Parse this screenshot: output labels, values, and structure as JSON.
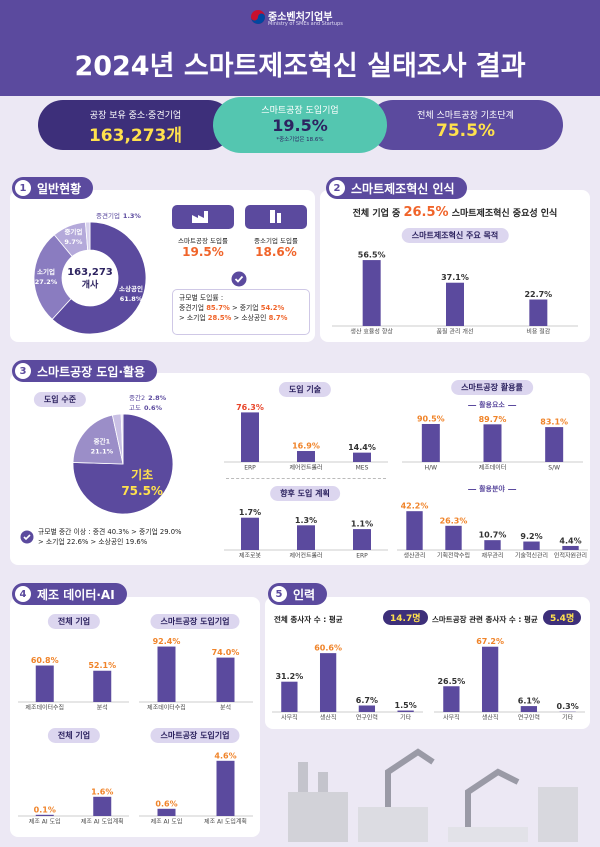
{
  "header": {
    "ministry": "중소벤처기업부",
    "ministry_en": "Ministry of SMEs and Startups",
    "title": "2024년 스마트제조혁신 실태조사 결과"
  },
  "summary": [
    {
      "label": "공장 보유 중소·중견기업",
      "value": "163,273개"
    },
    {
      "label": "스마트공장 도입기업",
      "value": "19.5%",
      "note": "*중소기업은 18.6%"
    },
    {
      "label": "전체 스마트공장 기초단계",
      "value": "75.5%"
    }
  ],
  "bar_color": "#5b4a9e",
  "sections": [
    {
      "number": "1",
      "title": "일반현황",
      "donut": {
        "center_value": "163,273",
        "center_unit": "개사",
        "categories": [
          "소상공인",
          "소기업",
          "중기업",
          "중견기업"
        ],
        "values": [
          61.8,
          27.2,
          9.7,
          1.3
        ],
        "value_labels": [
          "61.8%",
          "27.2%",
          "9.7%",
          "1.3%"
        ],
        "colors": [
          "#5b4a9e",
          "#8a7cc0",
          "#b4a9da",
          "#d8d2ee"
        ]
      },
      "cards": [
        {
          "label": "스마트공장 도입률",
          "value": "19.5%"
        },
        {
          "label": "중소기업 도입률",
          "value": "18.6%"
        }
      ],
      "by_size": {
        "title": "규모별 도입률 :",
        "lines": [
          [
            "중견기업 ",
            "85.7%",
            " > 중기업 ",
            "54.2%"
          ],
          [
            "> 소기업 ",
            "28.5%",
            " > 소상공인 ",
            "8.7%"
          ]
        ]
      }
    },
    {
      "number": "2",
      "title": "스마트제조혁신 인식",
      "headline": [
        "전체 기업 중 ",
        "26.5%",
        " 스마트제조혁신 중요성 인식"
      ],
      "chart": {
        "title": "스마트제조혁신 주요 목적",
        "categories": [
          "생산 효율성 향상",
          "품질 관리 개선",
          "비용 절감"
        ],
        "values": [
          56.5,
          37.1,
          22.7
        ],
        "value_labels": [
          "56.5%",
          "37.1%",
          "22.7%"
        ],
        "label_colors": [
          "#333333",
          "#333333",
          "#333333"
        ],
        "ylim": [
          0,
          60
        ]
      }
    },
    {
      "number": "3",
      "title": "스마트공장 도입·활용",
      "level": {
        "title": "도입 수준",
        "categories": [
          "기초",
          "중간1",
          "중간2",
          "고도"
        ],
        "values": [
          75.5,
          21.1,
          2.8,
          0.6
        ],
        "value_labels": [
          "75.5%",
          "21.1%",
          "2.8%",
          "0.6%"
        ],
        "colors": [
          "#5b4a9e",
          "#9b8ec8",
          "#c9c0e4",
          "#e5e0f2"
        ],
        "note": [
          "규모별 중간 이상 : 중견 40.3% > 중기업 29.0%",
          "> 소기업 22.6% > 소상공인 19.6%"
        ]
      },
      "tech": {
        "title": "도입 기술",
        "categories": [
          "ERP",
          "제어컨트롤러",
          "MES"
        ],
        "values": [
          76.3,
          16.9,
          14.4
        ],
        "value_labels": [
          "76.3%",
          "16.9%",
          "14.4%"
        ],
        "label_colors": [
          "#e8452a",
          "#f0842a",
          "#333333"
        ],
        "ylim": [
          0,
          80
        ]
      },
      "plan": {
        "title": "향후 도입 계획",
        "categories": [
          "제조로봇",
          "제어컨트롤러",
          "ERP"
        ],
        "values": [
          1.7,
          1.3,
          1.1
        ],
        "value_labels": [
          "1.7%",
          "1.3%",
          "1.1%"
        ],
        "label_colors": [
          "#333333",
          "#333333",
          "#333333"
        ],
        "ylim": [
          0,
          2
        ]
      },
      "usage": {
        "title": "스마트공장 활용률",
        "elements": {
          "title": "활용요소",
          "categories": [
            "H/W",
            "제조데이터",
            "S/W"
          ],
          "values": [
            90.5,
            89.7,
            83.1
          ],
          "value_labels": [
            "90.5%",
            "89.7%",
            "83.1%"
          ],
          "label_colors": [
            "#f0842a",
            "#f0842a",
            "#f0842a"
          ],
          "ylim": [
            0,
            100
          ]
        },
        "fields": {
          "title": "활용분야",
          "categories": [
            "생산관리",
            "기획전략수립",
            "재무관리",
            "기술혁신관리",
            "인적자원관리"
          ],
          "values": [
            42.2,
            26.3,
            10.7,
            9.2,
            4.4
          ],
          "value_labels": [
            "42.2%",
            "26.3%",
            "10.7%",
            "9.2%",
            "4.4%"
          ],
          "label_colors": [
            "#f0842a",
            "#f0842a",
            "#333333",
            "#333333",
            "#333333"
          ],
          "ylim": [
            0,
            50
          ]
        }
      }
    },
    {
      "number": "4",
      "title": "제조 데이터·AI",
      "charts": [
        {
          "title": "전체 기업",
          "categories": [
            "제조데이터수집",
            "분석"
          ],
          "values": [
            60.8,
            52.1
          ],
          "value_labels": [
            "60.8%",
            "52.1%"
          ],
          "label_colors": [
            "#f0842a",
            "#f0842a"
          ],
          "ylim": [
            0,
            100
          ]
        },
        {
          "title": "스마트공장 도입기업",
          "categories": [
            "제조데이터수집",
            "분석"
          ],
          "values": [
            92.4,
            74.0
          ],
          "value_labels": [
            "92.4%",
            "74.0%"
          ],
          "label_colors": [
            "#f0842a",
            "#f0842a"
          ],
          "ylim": [
            0,
            100
          ]
        },
        {
          "title": "전체 기업",
          "categories": [
            "제조 AI 도입",
            "제조 AI 도입계획"
          ],
          "values": [
            0.1,
            1.6
          ],
          "value_labels": [
            "0.1%",
            "1.6%"
          ],
          "label_colors": [
            "#f0842a",
            "#f0842a"
          ],
          "ylim": [
            0,
            5
          ]
        },
        {
          "title": "스마트공장 도입기업",
          "categories": [
            "제조 AI 도입",
            "제조 AI 도입계획"
          ],
          "values": [
            0.6,
            4.6
          ],
          "value_labels": [
            "0.6%",
            "4.6%"
          ],
          "label_colors": [
            "#f0842a",
            "#f0842a"
          ],
          "ylim": [
            0,
            5
          ]
        }
      ]
    },
    {
      "number": "5",
      "title": "인력",
      "charts": [
        {
          "title": "전체 종사자 수 : 평균",
          "average": "14.7명",
          "categories": [
            "사무직",
            "생산직",
            "연구인력",
            "기타"
          ],
          "values": [
            31.2,
            60.6,
            6.7,
            1.5
          ],
          "value_labels": [
            "31.2%",
            "60.6%",
            "6.7%",
            "1.5%"
          ],
          "label_colors": [
            "#333333",
            "#f0842a",
            "#333333",
            "#333333"
          ],
          "ylim": [
            0,
            70
          ]
        },
        {
          "title": "스마트공장 관련 종사자 수 : 평균",
          "average": "5.4명",
          "categories": [
            "사무직",
            "생산직",
            "연구인력",
            "기타"
          ],
          "values": [
            26.5,
            67.2,
            6.1,
            0.3
          ],
          "value_labels": [
            "26.5%",
            "67.2%",
            "6.1%",
            "0.3%"
          ],
          "label_colors": [
            "#333333",
            "#f0842a",
            "#333333",
            "#333333"
          ],
          "ylim": [
            0,
            70
          ]
        }
      ]
    }
  ]
}
